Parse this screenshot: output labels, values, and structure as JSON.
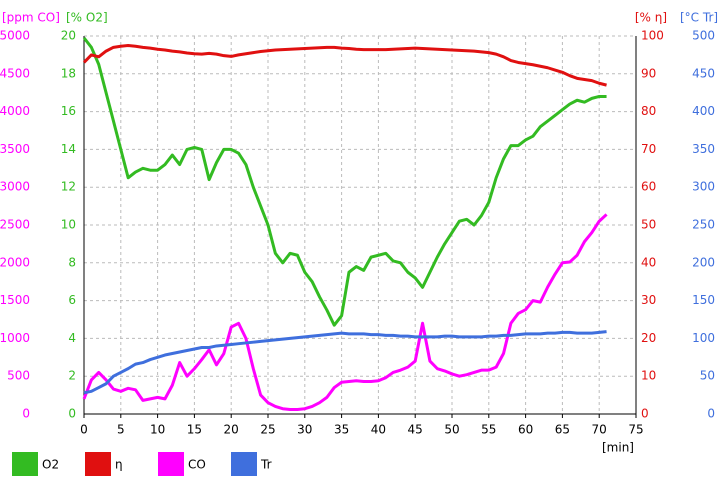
{
  "chart_data": {
    "type": "line",
    "x": [
      0,
      1,
      2,
      3,
      4,
      5,
      6,
      7,
      8,
      9,
      10,
      11,
      12,
      13,
      14,
      15,
      16,
      17,
      18,
      19,
      20,
      21,
      22,
      23,
      24,
      25,
      26,
      27,
      28,
      29,
      30,
      31,
      32,
      33,
      34,
      35,
      36,
      37,
      38,
      39,
      40,
      41,
      42,
      43,
      44,
      45,
      46,
      47,
      48,
      49,
      50,
      51,
      52,
      53,
      54,
      55,
      56,
      57,
      58,
      59,
      60,
      61,
      62,
      63,
      64,
      65,
      66,
      67,
      68,
      69,
      70,
      71
    ],
    "xlim": [
      0,
      75
    ],
    "xticks": [
      0,
      5,
      10,
      15,
      20,
      25,
      30,
      35,
      40,
      45,
      50,
      55,
      60,
      65,
      70,
      75
    ],
    "xlabel": "[min]",
    "ylim": [
      0,
      5000
    ],
    "yticks": [
      0,
      500,
      1000,
      1500,
      2000,
      2500,
      3000,
      3500,
      4000,
      4500,
      5000
    ],
    "ylabel": "[ppm CO]",
    "y2lim": [
      0,
      20
    ],
    "y2ticks": [
      0,
      2,
      4,
      6,
      8,
      10,
      12,
      14,
      16,
      18,
      20
    ],
    "y2label": "[% O2]",
    "y3lim": [
      0,
      100
    ],
    "y3ticks": [
      0,
      10,
      20,
      30,
      40,
      50,
      60,
      70,
      80,
      90,
      100
    ],
    "y3label": "[% η]",
    "y4lim": [
      0,
      500
    ],
    "y4ticks": [
      0,
      50,
      100,
      150,
      200,
      250,
      300,
      350,
      400,
      450,
      500
    ],
    "y4label": "[°C Tr]",
    "grid": true,
    "legend": "bottom",
    "series": [
      {
        "name": "O2",
        "color": "#33bb22",
        "axis": "y2",
        "values": [
          19.9,
          19.4,
          18.5,
          17,
          15.5,
          14,
          12.5,
          12.8,
          13,
          12.9,
          12.9,
          13.2,
          13.7,
          13.2,
          14,
          14.1,
          14,
          12.4,
          13.3,
          14,
          14,
          13.8,
          13.2,
          12,
          11,
          10,
          8.5,
          8,
          8.5,
          8.4,
          7.5,
          7,
          6.2,
          5.5,
          4.7,
          5.2,
          7.5,
          7.8,
          7.6,
          8.3,
          8.4,
          8.5,
          8.1,
          8,
          7.5,
          7.2,
          6.7,
          7.5,
          8.3,
          9,
          9.6,
          10.2,
          10.3,
          10,
          10.5,
          11.2,
          12.5,
          13.5,
          14.2,
          14.2,
          14.5,
          14.7,
          15.2,
          15.5,
          15.8,
          16.1,
          16.4,
          16.6,
          16.5,
          16.7,
          16.8,
          16.8
        ]
      },
      {
        "name": "η",
        "color": "#e01010",
        "axis": "y3",
        "values": [
          93,
          95,
          94.5,
          96,
          97,
          97.3,
          97.5,
          97.3,
          97,
          96.8,
          96.5,
          96.3,
          96,
          95.8,
          95.5,
          95.3,
          95.2,
          95.4,
          95.2,
          94.8,
          94.6,
          95,
          95.3,
          95.6,
          95.9,
          96.1,
          96.3,
          96.4,
          96.5,
          96.6,
          96.7,
          96.8,
          96.9,
          97,
          97,
          96.8,
          96.7,
          96.5,
          96.4,
          96.4,
          96.4,
          96.4,
          96.5,
          96.6,
          96.7,
          96.8,
          96.7,
          96.6,
          96.5,
          96.4,
          96.3,
          96.2,
          96.1,
          96,
          95.8,
          95.6,
          95.2,
          94.5,
          93.5,
          93,
          92.7,
          92.4,
          92,
          91.6,
          91,
          90.4,
          89.5,
          88.8,
          88.5,
          88.2,
          87.5,
          87
        ]
      },
      {
        "name": "CO",
        "color": "#ff00ff",
        "axis": "y",
        "values": [
          200,
          450,
          550,
          450,
          330,
          300,
          340,
          320,
          180,
          200,
          220,
          200,
          380,
          680,
          500,
          600,
          720,
          850,
          650,
          800,
          1150,
          1200,
          1000,
          600,
          250,
          150,
          100,
          70,
          60,
          60,
          70,
          100,
          150,
          220,
          350,
          420,
          430,
          440,
          430,
          430,
          440,
          480,
          550,
          580,
          620,
          700,
          1200,
          700,
          600,
          570,
          530,
          500,
          520,
          550,
          580,
          580,
          620,
          800,
          1200,
          1330,
          1380,
          1500,
          1480,
          1680,
          1850,
          2000,
          2010,
          2100,
          2280,
          2400,
          2550,
          2640
        ]
      },
      {
        "name": "Tr",
        "color": "#3f6fdd",
        "axis": "y4",
        "values": [
          28,
          30,
          35,
          40,
          50,
          55,
          60,
          66,
          68,
          72,
          75,
          78,
          80,
          82,
          84,
          86,
          88,
          88,
          90,
          91,
          92,
          93,
          94,
          95,
          96,
          97,
          98,
          99,
          100,
          101,
          102,
          103,
          104,
          105,
          106,
          107,
          106,
          106,
          106,
          105,
          105,
          104,
          104,
          103,
          103,
          102,
          102,
          102,
          102,
          103,
          103,
          102,
          102,
          102,
          102,
          103,
          103,
          104,
          104,
          105,
          106,
          106,
          106,
          107,
          107,
          108,
          108,
          107,
          107,
          107,
          108,
          109
        ]
      }
    ]
  }
}
